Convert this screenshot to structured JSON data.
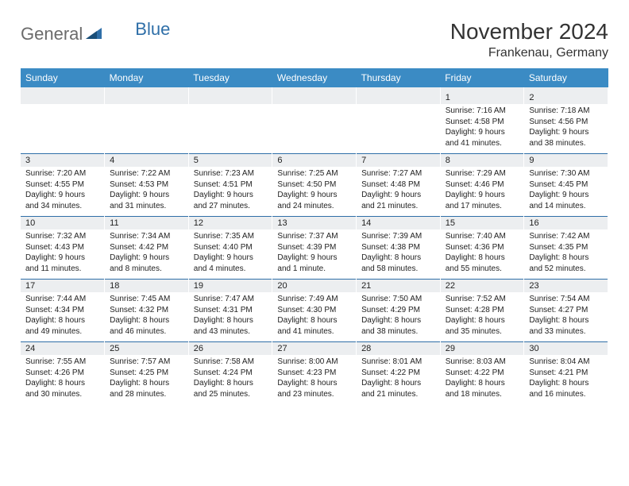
{
  "logo": {
    "part1": "General",
    "part2": "Blue"
  },
  "title": "November 2024",
  "location": "Frankenau, Germany",
  "columns": [
    "Sunday",
    "Monday",
    "Tuesday",
    "Wednesday",
    "Thursday",
    "Friday",
    "Saturday"
  ],
  "colors": {
    "header_bg": "#3b8bc4",
    "header_fg": "#ffffff",
    "daynum_bg": "#eceef0",
    "border_top": "#2f6fa8",
    "text": "#222222",
    "logo_gray": "#6b6b6b",
    "logo_blue": "#2f6fa8",
    "page_bg": "#ffffff"
  },
  "typography": {
    "title_fontsize": 28,
    "location_fontsize": 16,
    "header_fontsize": 12,
    "daynum_fontsize": 11,
    "detail_fontsize": 10
  },
  "weeks": [
    [
      null,
      null,
      null,
      null,
      null,
      {
        "num": "1",
        "sunrise": "7:16 AM",
        "sunset": "4:58 PM",
        "daylight": "9 hours and 41 minutes."
      },
      {
        "num": "2",
        "sunrise": "7:18 AM",
        "sunset": "4:56 PM",
        "daylight": "9 hours and 38 minutes."
      }
    ],
    [
      {
        "num": "3",
        "sunrise": "7:20 AM",
        "sunset": "4:55 PM",
        "daylight": "9 hours and 34 minutes."
      },
      {
        "num": "4",
        "sunrise": "7:22 AM",
        "sunset": "4:53 PM",
        "daylight": "9 hours and 31 minutes."
      },
      {
        "num": "5",
        "sunrise": "7:23 AM",
        "sunset": "4:51 PM",
        "daylight": "9 hours and 27 minutes."
      },
      {
        "num": "6",
        "sunrise": "7:25 AM",
        "sunset": "4:50 PM",
        "daylight": "9 hours and 24 minutes."
      },
      {
        "num": "7",
        "sunrise": "7:27 AM",
        "sunset": "4:48 PM",
        "daylight": "9 hours and 21 minutes."
      },
      {
        "num": "8",
        "sunrise": "7:29 AM",
        "sunset": "4:46 PM",
        "daylight": "9 hours and 17 minutes."
      },
      {
        "num": "9",
        "sunrise": "7:30 AM",
        "sunset": "4:45 PM",
        "daylight": "9 hours and 14 minutes."
      }
    ],
    [
      {
        "num": "10",
        "sunrise": "7:32 AM",
        "sunset": "4:43 PM",
        "daylight": "9 hours and 11 minutes."
      },
      {
        "num": "11",
        "sunrise": "7:34 AM",
        "sunset": "4:42 PM",
        "daylight": "9 hours and 8 minutes."
      },
      {
        "num": "12",
        "sunrise": "7:35 AM",
        "sunset": "4:40 PM",
        "daylight": "9 hours and 4 minutes."
      },
      {
        "num": "13",
        "sunrise": "7:37 AM",
        "sunset": "4:39 PM",
        "daylight": "9 hours and 1 minute."
      },
      {
        "num": "14",
        "sunrise": "7:39 AM",
        "sunset": "4:38 PM",
        "daylight": "8 hours and 58 minutes."
      },
      {
        "num": "15",
        "sunrise": "7:40 AM",
        "sunset": "4:36 PM",
        "daylight": "8 hours and 55 minutes."
      },
      {
        "num": "16",
        "sunrise": "7:42 AM",
        "sunset": "4:35 PM",
        "daylight": "8 hours and 52 minutes."
      }
    ],
    [
      {
        "num": "17",
        "sunrise": "7:44 AM",
        "sunset": "4:34 PM",
        "daylight": "8 hours and 49 minutes."
      },
      {
        "num": "18",
        "sunrise": "7:45 AM",
        "sunset": "4:32 PM",
        "daylight": "8 hours and 46 minutes."
      },
      {
        "num": "19",
        "sunrise": "7:47 AM",
        "sunset": "4:31 PM",
        "daylight": "8 hours and 43 minutes."
      },
      {
        "num": "20",
        "sunrise": "7:49 AM",
        "sunset": "4:30 PM",
        "daylight": "8 hours and 41 minutes."
      },
      {
        "num": "21",
        "sunrise": "7:50 AM",
        "sunset": "4:29 PM",
        "daylight": "8 hours and 38 minutes."
      },
      {
        "num": "22",
        "sunrise": "7:52 AM",
        "sunset": "4:28 PM",
        "daylight": "8 hours and 35 minutes."
      },
      {
        "num": "23",
        "sunrise": "7:54 AM",
        "sunset": "4:27 PM",
        "daylight": "8 hours and 33 minutes."
      }
    ],
    [
      {
        "num": "24",
        "sunrise": "7:55 AM",
        "sunset": "4:26 PM",
        "daylight": "8 hours and 30 minutes."
      },
      {
        "num": "25",
        "sunrise": "7:57 AM",
        "sunset": "4:25 PM",
        "daylight": "8 hours and 28 minutes."
      },
      {
        "num": "26",
        "sunrise": "7:58 AM",
        "sunset": "4:24 PM",
        "daylight": "8 hours and 25 minutes."
      },
      {
        "num": "27",
        "sunrise": "8:00 AM",
        "sunset": "4:23 PM",
        "daylight": "8 hours and 23 minutes."
      },
      {
        "num": "28",
        "sunrise": "8:01 AM",
        "sunset": "4:22 PM",
        "daylight": "8 hours and 21 minutes."
      },
      {
        "num": "29",
        "sunrise": "8:03 AM",
        "sunset": "4:22 PM",
        "daylight": "8 hours and 18 minutes."
      },
      {
        "num": "30",
        "sunrise": "8:04 AM",
        "sunset": "4:21 PM",
        "daylight": "8 hours and 16 minutes."
      }
    ]
  ],
  "labels": {
    "sunrise": "Sunrise: ",
    "sunset": "Sunset: ",
    "daylight": "Daylight: "
  }
}
